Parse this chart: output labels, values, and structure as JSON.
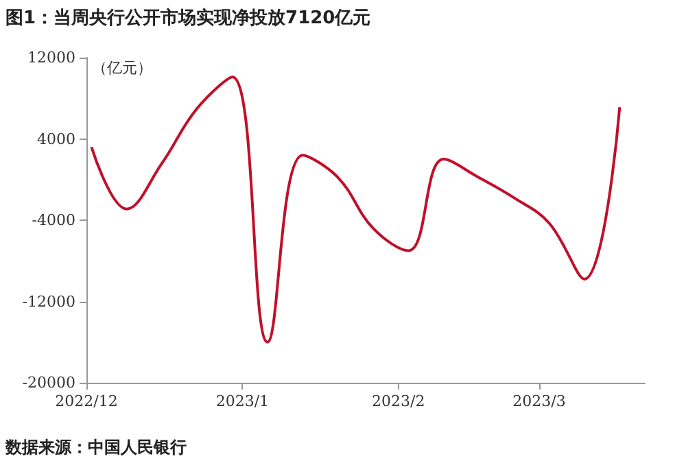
{
  "chart_data": {
    "type": "line",
    "title": "图1：当周央行公开市场实现净投放7120亿元",
    "ylabel": "（亿元）",
    "annotations": [
      "数据来源：中国人民银行"
    ],
    "x": [
      "2022-12-02",
      "2022-12-09",
      "2022-12-16",
      "2022-12-23",
      "2022-12-30",
      "2023-01-06",
      "2023-01-13",
      "2023-01-20",
      "2023-01-27",
      "2023-02-03",
      "2023-02-10",
      "2023-02-17",
      "2023-02-24",
      "2023-03-03",
      "2023-03-10",
      "2023-03-17"
    ],
    "series": [
      {
        "color": "#c0102a",
        "values": [
          3200,
          -2900,
          1600,
          7000,
          10100,
          -16000,
          2400,
          200,
          -4800,
          -7000,
          2000,
          200,
          -1800,
          -4300,
          -9800,
          7120
        ]
      }
    ],
    "xlim": [
      "2022-12-01",
      "2023-03-22"
    ],
    "xticks": [
      {
        "value": "2022-12-01",
        "label": "2022/12"
      },
      {
        "value": "2023-01-01",
        "label": "2023/1"
      },
      {
        "value": "2023-02-01",
        "label": "2023/2"
      },
      {
        "value": "2023-03-01",
        "label": "2023/3"
      }
    ],
    "ylim": [
      -20000,
      12000
    ],
    "yticks": [
      -20000,
      -12000,
      -4000,
      4000,
      12000
    ],
    "grid": false,
    "marker": "none",
    "line_style": "solid"
  }
}
